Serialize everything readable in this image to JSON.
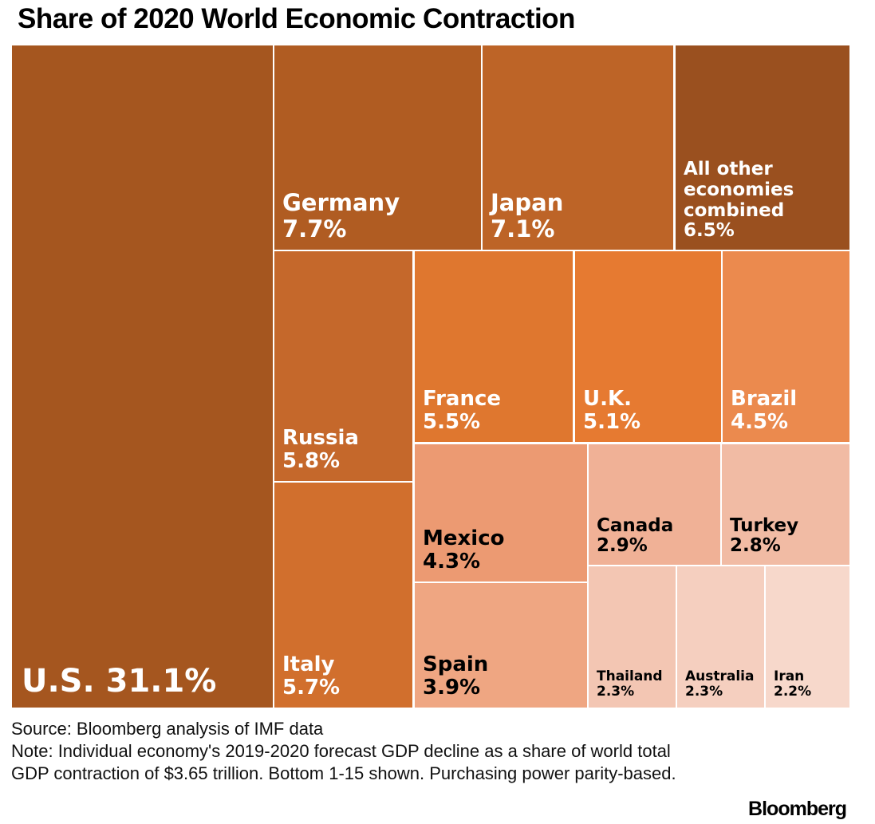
{
  "chart_data": {
    "type": "treemap",
    "title": "Share of 2020 World Economic Contraction",
    "unit": "%",
    "items": [
      {
        "name": "U.S.",
        "value": 31.1,
        "color": "#a5561f",
        "text_color": "#ffffff"
      },
      {
        "name": "Germany",
        "value": 7.7,
        "color": "#b05c22",
        "text_color": "#ffffff"
      },
      {
        "name": "Japan",
        "value": 7.1,
        "color": "#bd6427",
        "text_color": "#ffffff"
      },
      {
        "name": "All other economies combined",
        "value": 6.5,
        "color": "#9a501f",
        "text_color": "#ffffff"
      },
      {
        "name": "Russia",
        "value": 5.8,
        "color": "#c5682b",
        "text_color": "#ffffff"
      },
      {
        "name": "Italy",
        "value": 5.7,
        "color": "#d16f2d",
        "text_color": "#ffffff"
      },
      {
        "name": "France",
        "value": 5.5,
        "color": "#df772f",
        "text_color": "#ffffff"
      },
      {
        "name": "U.K.",
        "value": 5.1,
        "color": "#e67a31",
        "text_color": "#ffffff"
      },
      {
        "name": "Brazil",
        "value": 4.5,
        "color": "#eb8a4e",
        "text_color": "#ffffff"
      },
      {
        "name": "Mexico",
        "value": 4.3,
        "color": "#ec9a72",
        "text_color": "#000000"
      },
      {
        "name": "Spain",
        "value": 3.9,
        "color": "#efa682",
        "text_color": "#000000"
      },
      {
        "name": "Canada",
        "value": 2.9,
        "color": "#f0b196",
        "text_color": "#000000"
      },
      {
        "name": "Turkey",
        "value": 2.8,
        "color": "#f1bba4",
        "text_color": "#000000"
      },
      {
        "name": "Thailand",
        "value": 2.3,
        "color": "#f3c6b3",
        "text_color": "#000000"
      },
      {
        "name": "Australia",
        "value": 2.3,
        "color": "#f5cfbf",
        "text_color": "#000000"
      },
      {
        "name": "Iran",
        "value": 2.2,
        "color": "#f7d8cb",
        "text_color": "#000000"
      }
    ]
  },
  "labels": [
    "U.S. 31.1%",
    "Germany\n7.7%",
    "Japan\n7.1%",
    "All other\neconomies\ncombined\n6.5%",
    "Russia\n5.8%",
    "Italy\n5.7%",
    "France\n5.5%",
    "U.K.\n5.1%",
    "Brazil\n4.5%",
    "Mexico\n4.3%",
    "Spain\n3.9%",
    "Canada\n2.9%",
    "Turkey\n2.8%",
    "Thailand\n2.3%",
    "Australia\n2.3%",
    "Iran\n2.2%"
  ],
  "footer": {
    "source": "Source: Bloomberg analysis of IMF data",
    "note_line1": "Note: Individual economy's 2019-2020 forecast GDP decline as a share of world total",
    "note_line2": "GDP contraction of $3.65 trillion. Bottom 1-15 shown. Purchasing power parity-based.",
    "brand": "Bloomberg"
  }
}
